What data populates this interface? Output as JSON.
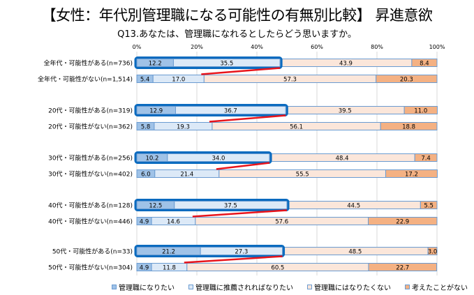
{
  "title": "【女性：年代別管理職になる可能性の有無別比較】 昇進意欲",
  "subtitle": "Q13.あなたは、管理職になれるとしたらどう思いますか。",
  "colors": {
    "series": [
      "#9fc2e7",
      "#dce9f7",
      "#fbe6da",
      "#f4b183"
    ],
    "bar_border": "#6a9bd1",
    "highlight_box": "#0b6bbf",
    "connector": "#e8141b",
    "grid": "#d9d9d9"
  },
  "chart_data": {
    "type": "bar",
    "orientation": "horizontal",
    "stacked": "percent",
    "title": "【女性：年代別管理職になる可能性の有無別比較】 昇進意欲",
    "subtitle": "Q13.あなたは、管理職になれるとしたらどう思いますか。",
    "xlim": [
      0,
      100
    ],
    "x_ticks": [
      "0%",
      "20%",
      "40%",
      "60%",
      "80%",
      "100%"
    ],
    "grid": true,
    "legend_position": "bottom",
    "categories": [
      "全年代・可能性がある(n=736)",
      "全年代・可能性がない(n=1,514)",
      "20代・可能性がある(n=319)",
      "20代・可能性がない(n=362)",
      "30代・可能性がある(n=256)",
      "30代・可能性がない(n=402)",
      "40代・可能性がある(n=128)",
      "40代・可能性がない(n=446)",
      "50代・可能性がある(n=33)",
      "50代・可能性がない(n=304)"
    ],
    "series": [
      {
        "name": "管理職になりたい",
        "values": [
          12.2,
          5.4,
          12.9,
          5.8,
          10.2,
          6.0,
          12.5,
          4.9,
          21.2,
          4.9
        ]
      },
      {
        "name": "管理職に推薦されればなりたい",
        "values": [
          35.5,
          17.0,
          36.7,
          19.3,
          34.0,
          21.4,
          37.5,
          14.6,
          27.3,
          11.8
        ]
      },
      {
        "name": "管理職にはなりたくない",
        "values": [
          43.9,
          57.3,
          39.5,
          56.1,
          48.4,
          55.5,
          44.5,
          57.6,
          48.5,
          60.5
        ]
      },
      {
        "name": "考えたことがない",
        "values": [
          8.4,
          20.3,
          11.0,
          18.8,
          7.4,
          17.2,
          5.5,
          22.9,
          3.0,
          22.7
        ]
      }
    ],
    "annotations": "Highlighted (boxed) sum of first two segments for each 可能性がある row, with red connector line to the corresponding 可能性がない row"
  }
}
